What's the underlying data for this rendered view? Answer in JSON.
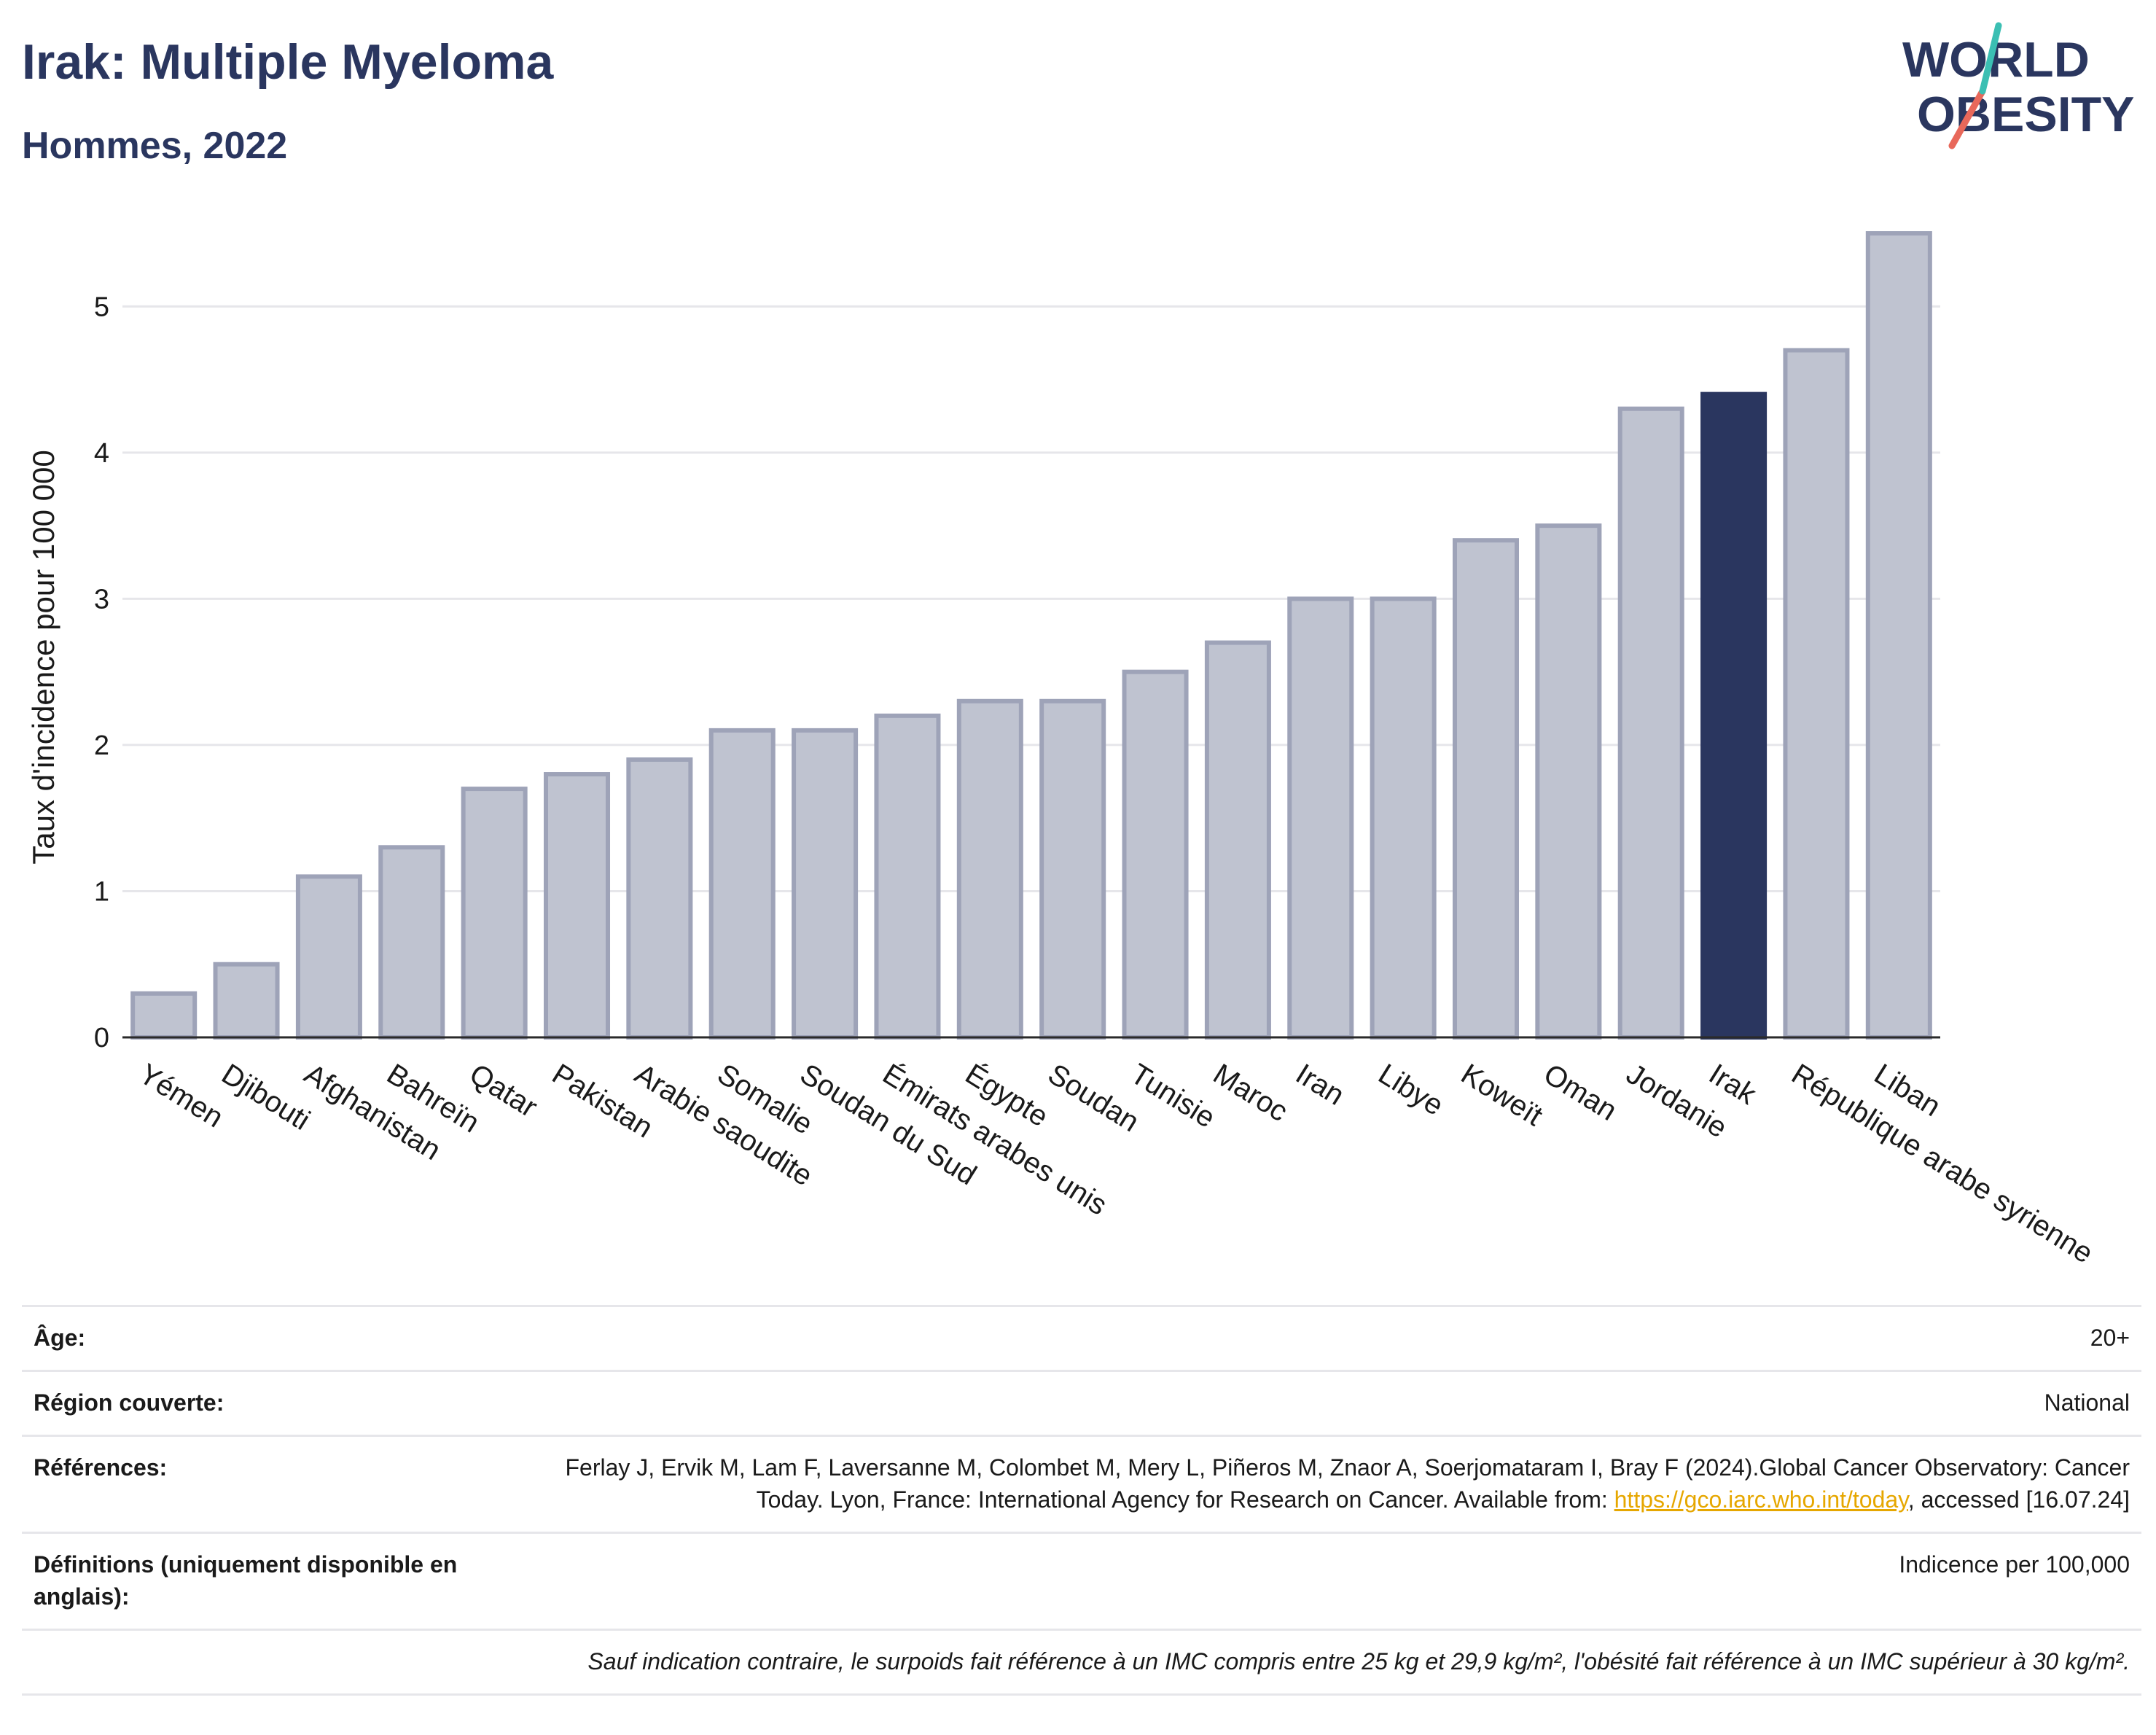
{
  "header": {
    "title": "Irak: Multiple Myeloma",
    "subtitle": "Hommes, 2022"
  },
  "logo": {
    "line1": "WORLD",
    "line2": "OBESITY"
  },
  "colors": {
    "highlight": "#2a365f",
    "bar_fill": "#bfc3d0",
    "bar_stroke": "#9ea3b8",
    "accent_teal": "#3bbfb3",
    "accent_red": "#e8685a"
  },
  "chart_data": {
    "type": "bar",
    "ylabel": "Taux d'incidence pour 100 000",
    "ylim": [
      0,
      5.6
    ],
    "yticks": [
      0,
      1,
      2,
      3,
      4,
      5
    ],
    "grid": true,
    "highlight_category": "Irak",
    "categories": [
      "Yémen",
      "Djibouti",
      "Afghanistan",
      "Bahreïn",
      "Qatar",
      "Pakistan",
      "Arabie saoudite",
      "Somalie",
      "Soudan du Sud",
      "Émirats arabes unis",
      "Égypte",
      "Soudan",
      "Tunisie",
      "Maroc",
      "Iran",
      "Libye",
      "Koweït",
      "Oman",
      "Jordanie",
      "Irak",
      "République arabe syrienne",
      "Liban"
    ],
    "values": [
      0.3,
      0.5,
      1.1,
      1.3,
      1.7,
      1.8,
      1.9,
      2.1,
      2.1,
      2.2,
      2.3,
      2.3,
      2.5,
      2.7,
      3.0,
      3.0,
      3.4,
      3.5,
      4.3,
      4.4,
      4.7,
      5.5
    ]
  },
  "meta": {
    "age_label": "Âge:",
    "age_value": "20+",
    "region_label": "Région couverte:",
    "region_value": "National",
    "references_label": "Références:",
    "references_text": "Ferlay J, Ervik M, Lam F, Laversanne M, Colombet M, Mery L, Piñeros M, Znaor A, Soerjomataram I, Bray F (2024).Global Cancer Observatory: Cancer Today. Lyon, France: International Agency for Research on Cancer. Available from:",
    "references_link": "https://gco.iarc.who.int/today",
    "references_suffix": ", accessed [16.07.24]",
    "definitions_label": "Définitions (uniquement disponible en anglais):",
    "definitions_value": "Indicence per 100,000",
    "footnote": "Sauf indication contraire, le surpoids fait référence à un IMC compris entre 25 kg et 29,9 kg/m², l'obésité fait référence à un IMC supérieur à 30 kg/m²."
  }
}
